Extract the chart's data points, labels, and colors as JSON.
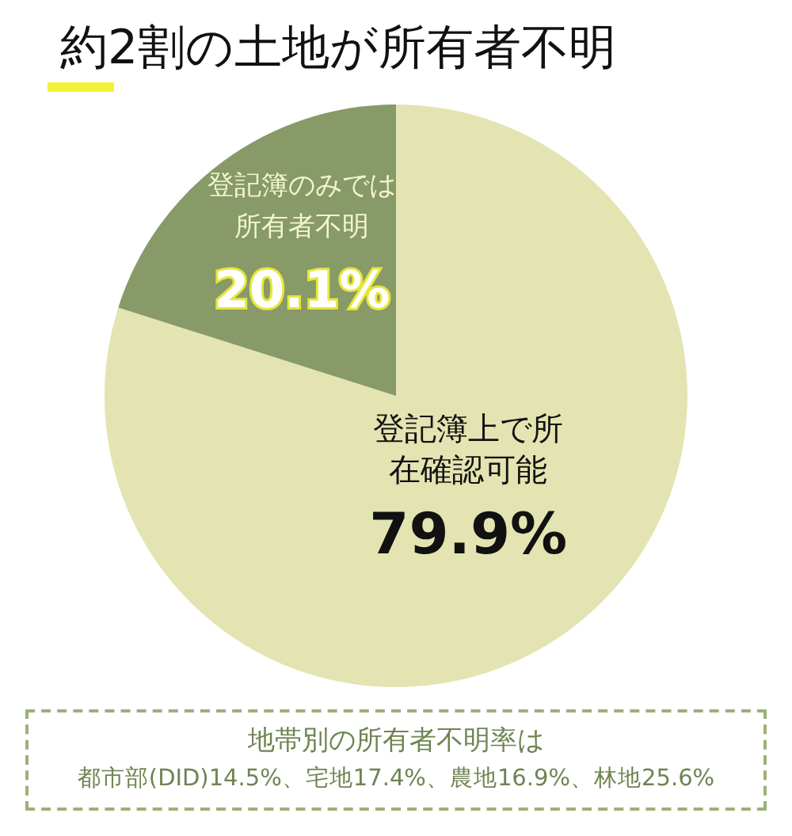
{
  "chart_data": {
    "type": "pie",
    "title": "約2割の土地が所有者不明",
    "categories": [
      "登記簿上で所在確認可能",
      "登記簿のみでは所有者不明"
    ],
    "values": [
      79.9,
      20.1
    ],
    "colors": [
      "#e3e4b1",
      "#879a68"
    ],
    "value_labels": [
      "79.9%",
      "20.1%"
    ],
    "legend": false,
    "annotations": [
      "地帯別の所有者不明率は",
      "都市部(DID)14.5%、宅地17.4%、農地16.9%、林地25.6%"
    ]
  }
}
